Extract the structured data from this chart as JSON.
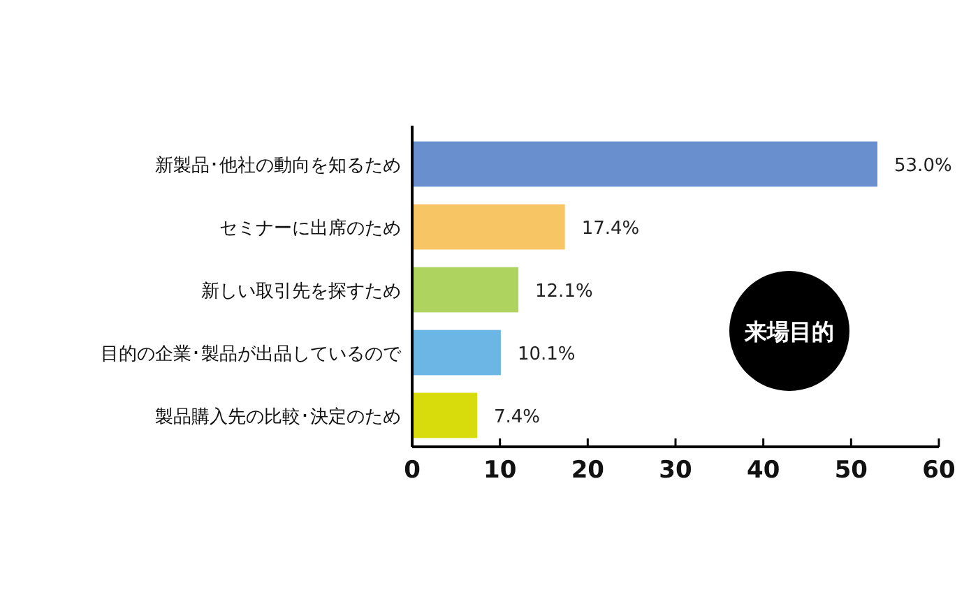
{
  "chart_data": {
    "type": "bar",
    "orientation": "horizontal",
    "categories": [
      "新製品･他社の動向を知るため",
      "セミナーに出席のため",
      "新しい取引先を探すため",
      "目的の企業･製品が出品しているので",
      "製品購入先の比較･決定のため"
    ],
    "values": [
      53.0,
      17.4,
      12.1,
      10.1,
      7.4
    ],
    "colors": [
      "#6a8fcf",
      "#f8c565",
      "#aed35f",
      "#6cb6e6",
      "#d8dc0c"
    ],
    "value_labels": [
      "53.0%",
      "17.4%",
      "12.1%",
      "10.1%",
      "7.4%"
    ],
    "xlim": [
      0,
      60
    ],
    "xticks": [
      0,
      10,
      20,
      30,
      40,
      50,
      60
    ],
    "annotations": [
      "来場目的"
    ],
    "grid": false
  }
}
